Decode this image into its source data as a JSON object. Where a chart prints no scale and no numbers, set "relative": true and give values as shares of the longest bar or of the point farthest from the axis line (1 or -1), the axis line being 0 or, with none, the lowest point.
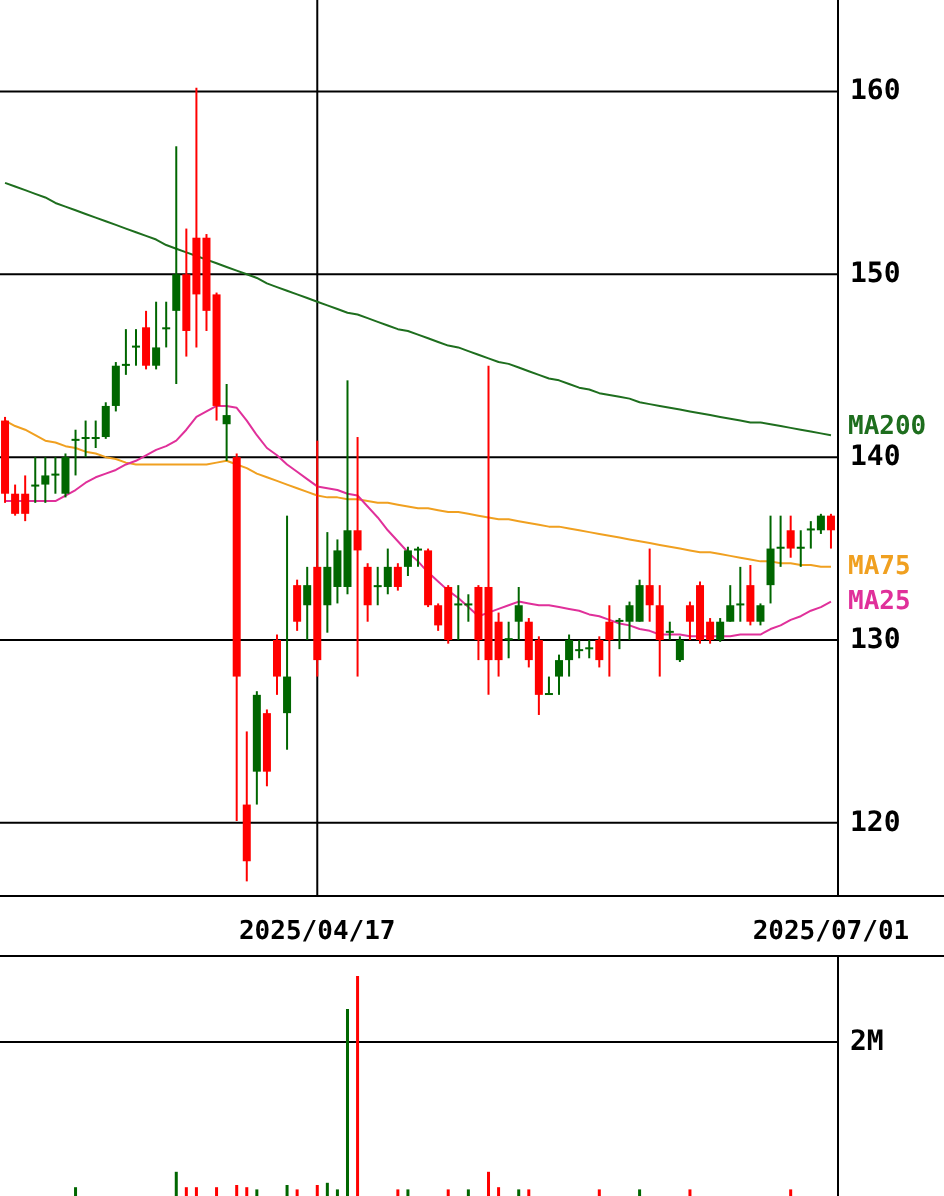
{
  "chart_data": [
    {
      "type": "candlestick",
      "grid": true,
      "ylim": [
        116,
        165
      ],
      "yticks": [
        120,
        130,
        140,
        150,
        160
      ],
      "categories": [
        null,
        null,
        null,
        null,
        null,
        null,
        null,
        null,
        null,
        null,
        null,
        null,
        null,
        null,
        null,
        null,
        null,
        null,
        null,
        null,
        null,
        null,
        null,
        null,
        null,
        null,
        null,
        null,
        null,
        null,
        null,
        "2025/04/17",
        null,
        null,
        null,
        null,
        null,
        null,
        null,
        null,
        null,
        null,
        null,
        null,
        null,
        null,
        null,
        null,
        null,
        null,
        null,
        null,
        null,
        null,
        null,
        null,
        null,
        null,
        null,
        null,
        null,
        null,
        null,
        null,
        null,
        null,
        null,
        null,
        null,
        null,
        null,
        null,
        null,
        null,
        null,
        null,
        null,
        null,
        null,
        null,
        null,
        null,
        "2025/07/01"
      ],
      "ohlc": [
        [
          142,
          142.2,
          137.5,
          138
        ],
        [
          138,
          138.5,
          136.8,
          136.9
        ],
        [
          138,
          139,
          136.5,
          136.9
        ],
        [
          138.4,
          140,
          137.5,
          138.5
        ],
        [
          138.5,
          140,
          137.5,
          139
        ],
        [
          139,
          140,
          138,
          139.1
        ],
        [
          138,
          140.2,
          137.8,
          140
        ],
        [
          140.9,
          141.5,
          139,
          141
        ],
        [
          141,
          142,
          140,
          141.1
        ],
        [
          141,
          142,
          140.5,
          141.1
        ],
        [
          141.1,
          143,
          141,
          142.8
        ],
        [
          142.8,
          145.2,
          142.5,
          145
        ],
        [
          145,
          147,
          144.5,
          145.1
        ],
        [
          146,
          147,
          145,
          146.1
        ],
        [
          147.1,
          148,
          144.8,
          145
        ],
        [
          145,
          148.5,
          144.8,
          146
        ],
        [
          147,
          148.5,
          146,
          147.1
        ],
        [
          148,
          157,
          144,
          150
        ],
        [
          150,
          152.5,
          145.5,
          146.9
        ],
        [
          152,
          160.2,
          146,
          148.9
        ],
        [
          152,
          152.2,
          146.9,
          148
        ],
        [
          148.9,
          149,
          142,
          142.8
        ],
        [
          141.8,
          144,
          139.8,
          142.3
        ],
        [
          140,
          140.2,
          120.1,
          128
        ],
        [
          121,
          125,
          116.8,
          117.9
        ],
        [
          122.8,
          127.2,
          121,
          127
        ],
        [
          126,
          126.2,
          122,
          122.8
        ],
        [
          130,
          130.3,
          127,
          128
        ],
        [
          126,
          136.8,
          124,
          128
        ],
        [
          133,
          133.3,
          130.5,
          131
        ],
        [
          131.9,
          134,
          130,
          133
        ],
        [
          134,
          140.9,
          128,
          128.9
        ],
        [
          131.9,
          135.9,
          130.4,
          134
        ],
        [
          132.9,
          135.5,
          132,
          134.9
        ],
        [
          132.9,
          144.2,
          132.5,
          136
        ],
        [
          136,
          141.1,
          128,
          134.9
        ],
        [
          134,
          134.2,
          131,
          131.9
        ],
        [
          132.9,
          134,
          131.9,
          133
        ],
        [
          132.9,
          135,
          132.5,
          134
        ],
        [
          134,
          134.2,
          132.7,
          132.9
        ],
        [
          134,
          135.1,
          133.5,
          134.9
        ],
        [
          134.9,
          135.1,
          134,
          135
        ],
        [
          134.9,
          135,
          131.8,
          131.9
        ],
        [
          131.9,
          132,
          130.5,
          130.8
        ],
        [
          132.9,
          133,
          129.8,
          130
        ],
        [
          131.9,
          133,
          130,
          132
        ],
        [
          131.9,
          132.5,
          131,
          132
        ],
        [
          132.9,
          133,
          128.9,
          130
        ],
        [
          132.9,
          145,
          127,
          128.9
        ],
        [
          131,
          131.5,
          128,
          128.9
        ],
        [
          130,
          131,
          129,
          130.1
        ],
        [
          131,
          132.9,
          130,
          131.9
        ],
        [
          131,
          131.2,
          128.5,
          128.9
        ],
        [
          130,
          130.2,
          125.9,
          127
        ],
        [
          127,
          128,
          127,
          127.1
        ],
        [
          128,
          129.2,
          127,
          128.9
        ],
        [
          128.9,
          130.3,
          128,
          130
        ],
        [
          129.4,
          130,
          129,
          129.5
        ],
        [
          129.5,
          130,
          129,
          129.6
        ],
        [
          130,
          130.2,
          128.5,
          128.9
        ],
        [
          131,
          131.9,
          128,
          130
        ],
        [
          131,
          131.2,
          129.5,
          131.1
        ],
        [
          131,
          132.1,
          130,
          131.9
        ],
        [
          131,
          133.3,
          131,
          133
        ],
        [
          133,
          135,
          131,
          131.9
        ],
        [
          131.9,
          133,
          128,
          130
        ],
        [
          130.4,
          131,
          130,
          130.5
        ],
        [
          128.9,
          130.2,
          128.8,
          130
        ],
        [
          131.9,
          132.1,
          130,
          131
        ],
        [
          133,
          133.2,
          129.8,
          130
        ],
        [
          131,
          131.2,
          129.8,
          130
        ],
        [
          130,
          131.2,
          129.9,
          131
        ],
        [
          131,
          133,
          131,
          131.9
        ],
        [
          131.9,
          134,
          131,
          132
        ],
        [
          133,
          134.1,
          130.8,
          131
        ],
        [
          131,
          132,
          130.8,
          131.9
        ],
        [
          133,
          136.8,
          132,
          135
        ],
        [
          135,
          136.8,
          134,
          135.1
        ],
        [
          136,
          136.8,
          134.5,
          135
        ],
        [
          135,
          136,
          134,
          135.1
        ],
        [
          136,
          136.5,
          135,
          136.1
        ],
        [
          136,
          136.9,
          135.8,
          136.8
        ],
        [
          136.8,
          136.9,
          135,
          136
        ]
      ],
      "colors": [
        "#ff0000",
        "#ff0000",
        "#ff0000",
        "#006600",
        "#006600",
        "#006600",
        "#006600",
        "#006600",
        "#006600",
        "#006600",
        "#006600",
        "#006600",
        "#006600",
        "#006600",
        "#ff0000",
        "#006600",
        "#006600",
        "#006600",
        "#ff0000",
        "#ff0000",
        "#ff0000",
        "#ff0000",
        "#006600",
        "#ff0000",
        "#ff0000",
        "#006600",
        "#ff0000",
        "#ff0000",
        "#006600",
        "#ff0000",
        "#006600",
        "#ff0000",
        "#006600",
        "#006600",
        "#006600",
        "#ff0000",
        "#ff0000",
        "#006600",
        "#006600",
        "#ff0000",
        "#006600",
        "#006600",
        "#ff0000",
        "#ff0000",
        "#ff0000",
        "#006600",
        "#006600",
        "#ff0000",
        "#ff0000",
        "#ff0000",
        "#006600",
        "#006600",
        "#ff0000",
        "#ff0000",
        "#006600",
        "#006600",
        "#006600",
        "#006600",
        "#006600",
        "#ff0000",
        "#ff0000",
        "#006600",
        "#006600",
        "#006600",
        "#ff0000",
        "#ff0000",
        "#006600",
        "#006600",
        "#ff0000",
        "#ff0000",
        "#ff0000",
        "#006600",
        "#006600",
        "#006600",
        "#ff0000",
        "#006600",
        "#006600",
        "#006600",
        "#ff0000",
        "#006600",
        "#006600",
        "#006600",
        "#ff0000"
      ],
      "series": [
        {
          "type": "line",
          "name": "MA200",
          "color": "#1e6e1e",
          "values": [
            155.0,
            154.8,
            154.6,
            154.4,
            154.2,
            153.9,
            153.7,
            153.5,
            153.3,
            153.1,
            152.9,
            152.7,
            152.5,
            152.3,
            152.1,
            151.9,
            151.6,
            151.4,
            151.2,
            151.0,
            150.8,
            150.6,
            150.4,
            150.2,
            150.0,
            149.8,
            149.5,
            149.3,
            149.1,
            148.9,
            148.7,
            148.5,
            148.3,
            148.1,
            147.9,
            147.8,
            147.6,
            147.4,
            147.2,
            147.0,
            146.9,
            146.7,
            146.5,
            146.3,
            146.1,
            146.0,
            145.8,
            145.6,
            145.4,
            145.2,
            145.1,
            144.9,
            144.7,
            144.5,
            144.3,
            144.2,
            144.0,
            143.8,
            143.7,
            143.5,
            143.4,
            143.3,
            143.2,
            143.0,
            142.9,
            142.8,
            142.7,
            142.6,
            142.5,
            142.4,
            142.3,
            142.2,
            142.1,
            142.0,
            141.9,
            141.9,
            141.8,
            141.7,
            141.6,
            141.5,
            141.4,
            141.3,
            141.2
          ]
        },
        {
          "type": "line",
          "name": "MA75",
          "color": "#f0a020",
          "values": [
            142.0,
            141.7,
            141.5,
            141.2,
            140.9,
            140.8,
            140.6,
            140.5,
            140.3,
            140.2,
            140.0,
            139.9,
            139.7,
            139.6,
            139.6,
            139.6,
            139.6,
            139.6,
            139.6,
            139.6,
            139.6,
            139.7,
            139.8,
            139.6,
            139.4,
            139.1,
            138.9,
            138.7,
            138.5,
            138.3,
            138.1,
            137.9,
            137.8,
            137.8,
            137.7,
            137.7,
            137.6,
            137.5,
            137.5,
            137.4,
            137.3,
            137.2,
            137.2,
            137.1,
            137.0,
            137.0,
            136.9,
            136.8,
            136.7,
            136.6,
            136.6,
            136.5,
            136.4,
            136.3,
            136.2,
            136.2,
            136.1,
            136.0,
            135.9,
            135.8,
            135.7,
            135.6,
            135.5,
            135.4,
            135.3,
            135.2,
            135.1,
            135.0,
            134.9,
            134.8,
            134.8,
            134.7,
            134.6,
            134.5,
            134.4,
            134.3,
            134.3,
            134.2,
            134.2,
            134.1,
            134.1,
            134.0,
            134.0
          ]
        },
        {
          "type": "line",
          "name": "MA25",
          "color": "#e0309a",
          "values": [
            137.6,
            137.6,
            137.6,
            137.6,
            137.6,
            137.6,
            137.9,
            138.2,
            138.6,
            138.9,
            139.1,
            139.3,
            139.6,
            139.8,
            140.1,
            140.4,
            140.6,
            140.9,
            141.5,
            142.2,
            142.5,
            142.8,
            142.8,
            142.7,
            142.0,
            141.2,
            140.5,
            140.1,
            139.6,
            139.2,
            138.8,
            138.4,
            138.3,
            138.2,
            138.0,
            137.9,
            137.3,
            136.7,
            136.0,
            135.4,
            134.8,
            134.3,
            133.7,
            133.2,
            132.7,
            132.3,
            131.8,
            131.3,
            131.5,
            131.7,
            131.9,
            132.1,
            132.0,
            131.9,
            131.9,
            131.8,
            131.7,
            131.6,
            131.4,
            131.3,
            131.1,
            130.9,
            130.8,
            130.6,
            130.5,
            130.3,
            130.3,
            130.3,
            130.2,
            130.2,
            130.2,
            130.2,
            130.2,
            130.3,
            130.3,
            130.3,
            130.6,
            130.8,
            131.1,
            131.3,
            131.6,
            131.8,
            132.1
          ]
        }
      ]
    },
    {
      "type": "bar",
      "relative": true,
      "categories": [
        null,
        null,
        null,
        null,
        null,
        null,
        null,
        null,
        null,
        null,
        null,
        null,
        null,
        null,
        null,
        null,
        null,
        null,
        null,
        null,
        null,
        null,
        null,
        null,
        null,
        null,
        null,
        null,
        null,
        null,
        null,
        null,
        null,
        null,
        null,
        null,
        null,
        null,
        null,
        null,
        null,
        null,
        null,
        null,
        null,
        null,
        null,
        null,
        null,
        null,
        null,
        null,
        null,
        null,
        null,
        null,
        null,
        null,
        null,
        null,
        null,
        null,
        null,
        null,
        null,
        null,
        null,
        null,
        null,
        null,
        null,
        null,
        null,
        null,
        null,
        null,
        null,
        null,
        null,
        null,
        null,
        null,
        null
      ],
      "values": [
        null,
        null,
        null,
        null,
        null,
        null,
        null,
        0.04,
        null,
        null,
        null,
        null,
        null,
        null,
        null,
        null,
        null,
        0.11,
        0.04,
        0.04,
        null,
        0.04,
        null,
        0.05,
        0.04,
        0.03,
        null,
        null,
        0.05,
        0.03,
        null,
        0.05,
        0.06,
        0.03,
        0.85,
        1,
        null,
        null,
        null,
        0.03,
        0.03,
        null,
        null,
        null,
        0.03,
        null,
        0.03,
        null,
        0.11,
        0.04,
        null,
        0.03,
        0.03,
        null,
        null,
        null,
        null,
        null,
        null,
        0.03,
        null,
        null,
        null,
        0.03,
        null,
        null,
        null,
        null,
        0.03,
        null,
        null,
        null,
        null,
        null,
        null,
        null,
        null,
        null,
        0.03,
        null,
        null,
        null,
        null
      ],
      "colors": [
        null,
        null,
        null,
        null,
        null,
        null,
        null,
        "#006600",
        null,
        null,
        null,
        null,
        null,
        null,
        null,
        null,
        null,
        "#006600",
        "#ff0000",
        "#ff0000",
        null,
        "#ff0000",
        null,
        "#ff0000",
        "#ff0000",
        "#006600",
        null,
        null,
        "#006600",
        "#ff0000",
        null,
        "#ff0000",
        "#006600",
        "#006600",
        "#006600",
        "#ff0000",
        null,
        null,
        null,
        "#ff0000",
        "#006600",
        null,
        null,
        null,
        "#ff0000",
        null,
        "#006600",
        null,
        "#ff0000",
        "#ff0000",
        null,
        "#006600",
        "#ff0000",
        null,
        null,
        null,
        null,
        null,
        null,
        "#ff0000",
        null,
        null,
        null,
        "#006600",
        null,
        null,
        null,
        null,
        "#ff0000",
        null,
        null,
        null,
        null,
        null,
        null,
        null,
        null,
        null,
        "#ff0000",
        null,
        null,
        null,
        null
      ],
      "ref_lines": [
        {
          "axis": "y",
          "value": 0.7,
          "label": "2M"
        }
      ]
    }
  ]
}
